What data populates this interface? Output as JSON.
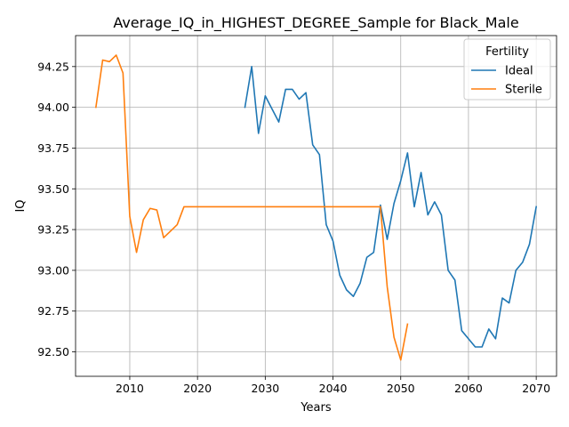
{
  "chart_data": {
    "type": "line",
    "title": "Average_IQ_in_HIGHEST_DEGREE_Sample for Black_Male",
    "xlabel": "Years",
    "ylabel": "IQ",
    "xlim": [
      2002,
      2073
    ],
    "ylim": [
      92.35,
      94.44
    ],
    "xticks": [
      2010,
      2020,
      2030,
      2040,
      2050,
      2060,
      2070
    ],
    "yticks": [
      92.5,
      92.75,
      93.0,
      93.25,
      93.5,
      93.75,
      94.0,
      94.25
    ],
    "ytick_labels": [
      "92.50",
      "92.75",
      "93.00",
      "93.25",
      "93.50",
      "93.75",
      "94.00",
      "94.25"
    ],
    "grid": true,
    "legend": {
      "title": "Fertility",
      "placement": "top-right"
    },
    "series": [
      {
        "name": "Ideal",
        "color": "#1f77b4",
        "x": [
          2027,
          2028,
          2029,
          2030,
          2031,
          2032,
          2033,
          2034,
          2035,
          2036,
          2037,
          2038,
          2039,
          2040,
          2041,
          2042,
          2043,
          2044,
          2045,
          2046,
          2047,
          2048,
          2049,
          2050,
          2051,
          2052,
          2053,
          2054,
          2055,
          2056,
          2057,
          2058,
          2059,
          2060,
          2061,
          2062,
          2063,
          2064,
          2065,
          2066,
          2067,
          2068,
          2069,
          2070
        ],
        "y": [
          94.0,
          94.25,
          93.84,
          94.07,
          93.99,
          93.91,
          94.11,
          94.11,
          94.05,
          94.09,
          93.77,
          93.71,
          93.28,
          93.18,
          92.97,
          92.88,
          92.84,
          92.92,
          93.08,
          93.11,
          93.4,
          93.19,
          93.41,
          93.55,
          93.72,
          93.39,
          93.6,
          93.34,
          93.42,
          93.34,
          93.0,
          92.94,
          92.63,
          92.58,
          92.53,
          92.53,
          92.64,
          92.58,
          92.83,
          92.8,
          93.0,
          93.05,
          93.16,
          93.39
        ]
      },
      {
        "name": "Sterile",
        "color": "#ff7f0e",
        "x": [
          2005,
          2006,
          2007,
          2008,
          2009,
          2010,
          2011,
          2012,
          2013,
          2014,
          2015,
          2016,
          2017,
          2018,
          2019,
          2020,
          2021,
          2022,
          2023,
          2024,
          2025,
          2026,
          2027,
          2028,
          2029,
          2030,
          2031,
          2032,
          2033,
          2034,
          2035,
          2036,
          2037,
          2038,
          2039,
          2040,
          2041,
          2042,
          2043,
          2044,
          2045,
          2046,
          2047,
          2048,
          2049,
          2050,
          2051
        ],
        "y": [
          94.0,
          94.29,
          94.28,
          94.32,
          94.21,
          93.33,
          93.11,
          93.31,
          93.38,
          93.37,
          93.2,
          93.24,
          93.28,
          93.39,
          93.39,
          93.39,
          93.39,
          93.39,
          93.39,
          93.39,
          93.39,
          93.39,
          93.39,
          93.39,
          93.39,
          93.39,
          93.39,
          93.39,
          93.39,
          93.39,
          93.39,
          93.39,
          93.39,
          93.39,
          93.39,
          93.39,
          93.39,
          93.39,
          93.39,
          93.39,
          93.39,
          93.39,
          93.39,
          92.9,
          92.59,
          92.45,
          92.67
        ]
      }
    ]
  }
}
